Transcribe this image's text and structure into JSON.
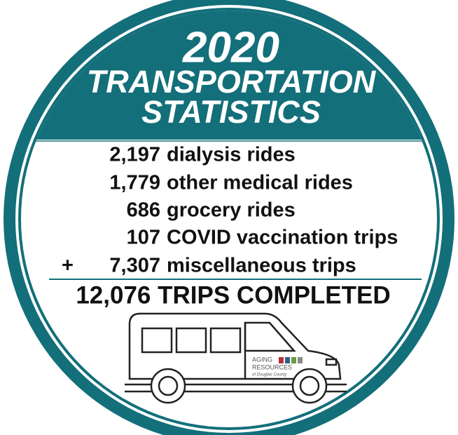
{
  "header": {
    "year": "2020",
    "line1": "TRANSPORTATION",
    "line2": "STATISTICS"
  },
  "items": [
    {
      "number": "2,197",
      "label": "dialysis rides"
    },
    {
      "number": "1,779",
      "label": "other medical rides"
    },
    {
      "number": "686",
      "label": "grocery rides"
    },
    {
      "number": "107",
      "label": "COVID vaccination trips"
    },
    {
      "number": "7,307",
      "label": "miscellaneous trips"
    }
  ],
  "plus": "+",
  "total": "12,076 TRIPS COMPLETED",
  "logo": {
    "line1": "AGING",
    "line2": "RESOURCES",
    "line3": "of Douglas County"
  }
}
